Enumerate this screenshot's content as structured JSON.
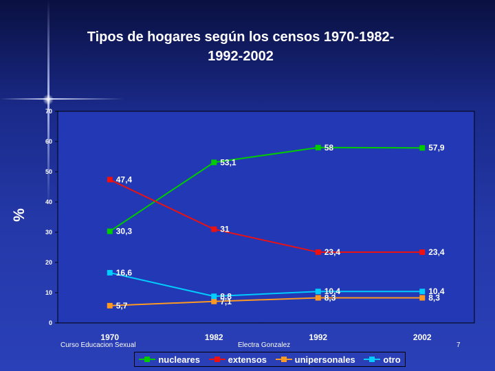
{
  "slide": {
    "title_line1": "Tipos de hogares según los censos 1970-1982-",
    "title_line2": "1992-2002",
    "footer_left": "Curso Educacion Sexual",
    "footer_center": "Electra Gonzalez",
    "page_number": "7"
  },
  "chart_data": {
    "type": "line",
    "title": "Tipos de hogares según los censos 1970-1982-1992-2002",
    "xlabel": "",
    "ylabel": "%",
    "categories": [
      "1970",
      "1982",
      "1992",
      "2002"
    ],
    "ylim": [
      0,
      70
    ],
    "yticks": [
      "0",
      "10",
      "20",
      "30",
      "40",
      "50",
      "60",
      "70"
    ],
    "grid": false,
    "legend": "bottom",
    "series": [
      {
        "name": "nucleares",
        "color": "#00cc00",
        "values": [
          30.3,
          53.1,
          58,
          57.9
        ],
        "labels": [
          "30,3",
          "53,1",
          "58",
          "57,9"
        ]
      },
      {
        "name": "extensos",
        "color": "#ee1111",
        "values": [
          47.4,
          31,
          23.4,
          23.4
        ],
        "labels": [
          "47,4",
          "31",
          "23,4",
          "23,4"
        ]
      },
      {
        "name": "unipersonales",
        "color": "#ff9922",
        "values": [
          5.7,
          7.1,
          8.3,
          8.3
        ],
        "labels": [
          "5,7",
          "7,1",
          "8,3",
          "8,3"
        ]
      },
      {
        "name": "otro",
        "color": "#00ccff",
        "values": [
          16.6,
          8.8,
          10.4,
          10.4
        ],
        "labels": [
          "16,6",
          "8,8",
          "10,4",
          "10,4"
        ]
      }
    ]
  }
}
